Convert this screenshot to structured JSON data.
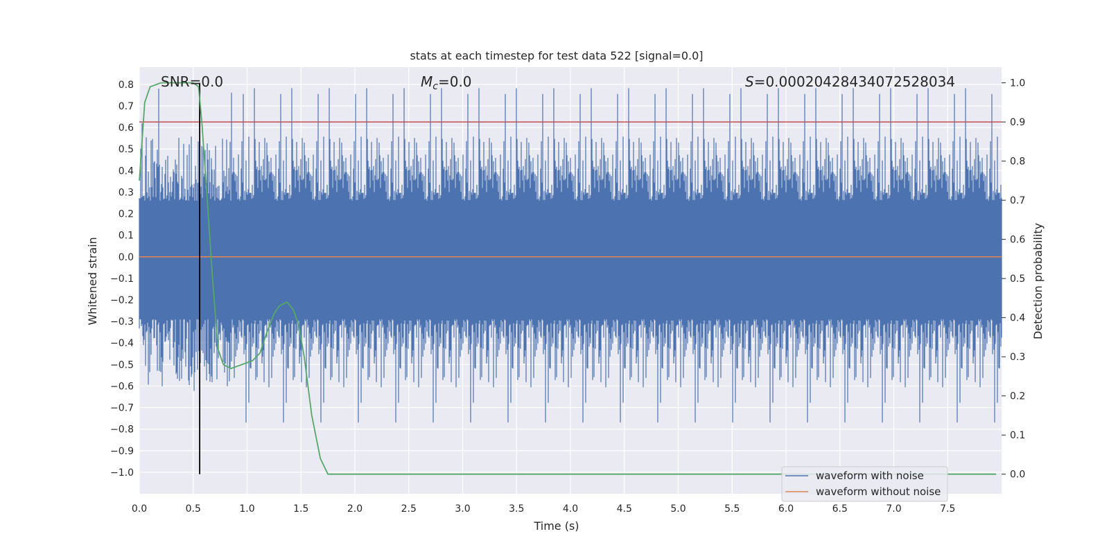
{
  "chart_data": {
    "type": "line",
    "title": "stats at each timestep for test data 522 [signal=0.0]",
    "xlabel": "Time (s)",
    "ylabel": "Whitened strain",
    "ylabel_right": "Detection probability",
    "xlim": [
      0.0,
      8.0
    ],
    "ylim": [
      -1.1,
      0.88
    ],
    "ylim_right": [
      -0.05,
      1.04
    ],
    "x_ticks": [
      0.0,
      0.5,
      1.0,
      1.5,
      2.0,
      2.5,
      3.0,
      3.5,
      4.0,
      4.5,
      5.0,
      5.5,
      6.0,
      6.5,
      7.0,
      7.5
    ],
    "x_tick_labels": [
      "0.0",
      "0.5",
      "1.0",
      "1.5",
      "2.0",
      "2.5",
      "3.0",
      "3.5",
      "4.0",
      "4.5",
      "5.0",
      "5.5",
      "6.0",
      "6.5",
      "7.0",
      "7.5"
    ],
    "y_ticks": [
      0.8,
      0.7,
      0.6,
      0.5,
      0.4,
      0.3,
      0.2,
      0.1,
      0.0,
      -0.1,
      -0.2,
      -0.3,
      -0.4,
      -0.5,
      -0.6,
      -0.7,
      -0.8,
      -0.9,
      -1.0
    ],
    "y_tick_labels": [
      "0.8",
      "0.7",
      "0.6",
      "0.5",
      "0.4",
      "0.3",
      "0.2",
      "0.1",
      "0.0",
      "−0.1",
      "−0.2",
      "−0.3",
      "−0.4",
      "−0.5",
      "−0.6",
      "−0.7",
      "−0.8",
      "−0.9",
      "−1.0"
    ],
    "y_right_ticks": [
      1.0,
      0.9,
      0.8,
      0.7,
      0.6,
      0.5,
      0.4,
      0.3,
      0.2,
      0.1,
      0.0
    ],
    "y_right_tick_labels": [
      "1.0",
      "0.9",
      "0.8",
      "0.7",
      "0.6",
      "0.5",
      "0.4",
      "0.3",
      "0.2",
      "0.1",
      "0.0"
    ],
    "annotations": {
      "snr": "SNR=0.0",
      "mc_symbol": "M",
      "mc_sub": "c",
      "mc_value": "=0.0",
      "s_symbol": "S",
      "s_value": "=0.00020428434072528034"
    },
    "series": [
      {
        "name": "waveform with noise",
        "color": "#4c72b0",
        "style": "noise",
        "approx_range": [
          -1.0,
          0.8
        ],
        "core_range": [
          -0.29,
          0.26
        ]
      },
      {
        "name": "waveform without noise",
        "color": "#dd8452",
        "y": 0.0
      },
      {
        "color": "#55a868",
        "axis": "right",
        "x": [
          0.0,
          0.05,
          0.1,
          0.2,
          0.3,
          0.4,
          0.5,
          0.55,
          0.58,
          0.63,
          0.68,
          0.73,
          0.78,
          0.85,
          0.95,
          1.05,
          1.12,
          1.18,
          1.25,
          1.3,
          1.37,
          1.43,
          1.48,
          1.53,
          1.6,
          1.68,
          1.75,
          1.82,
          2.0,
          3.0,
          4.0,
          5.0,
          6.0,
          7.0,
          7.95
        ],
        "y": [
          0.75,
          0.95,
          0.99,
          1.0,
          1.0,
          1.0,
          1.0,
          0.99,
          0.9,
          0.7,
          0.5,
          0.32,
          0.28,
          0.27,
          0.28,
          0.29,
          0.31,
          0.36,
          0.41,
          0.43,
          0.44,
          0.42,
          0.38,
          0.3,
          0.15,
          0.04,
          0.0,
          0.0,
          0.0,
          0.0,
          0.0,
          0.0,
          0.0,
          0.0,
          0.0
        ]
      }
    ],
    "threshold": {
      "color": "#c44e52",
      "y_right": 0.9
    },
    "marker_line": {
      "color": "#000000",
      "x": 0.56
    },
    "colors": {
      "background": "#eaeaf2",
      "grid": "#ffffff"
    },
    "grid": true,
    "legend": {
      "placement": "lower right",
      "entries": [
        "waveform with noise",
        "waveform without noise"
      ]
    }
  }
}
